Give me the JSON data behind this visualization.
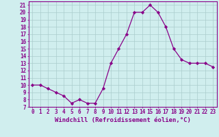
{
  "x": [
    0,
    1,
    2,
    3,
    4,
    5,
    6,
    7,
    8,
    9,
    10,
    11,
    12,
    13,
    14,
    15,
    16,
    17,
    18,
    19,
    20,
    21,
    22,
    23
  ],
  "y": [
    10,
    10,
    9.5,
    9,
    8.5,
    7.5,
    8,
    7.5,
    7.5,
    9.5,
    13,
    15,
    17,
    20,
    20,
    21,
    20,
    18,
    15,
    13.5,
    13,
    13,
    13,
    12.5
  ],
  "line_color": "#880088",
  "marker": "D",
  "marker_size": 2.2,
  "bg_color": "#d0eeee",
  "grid_color": "#aacccc",
  "xlabel": "Windchill (Refroidissement éolien,°C)",
  "xlim": [
    -0.5,
    23.5
  ],
  "ylim": [
    7,
    21.5
  ],
  "yticks": [
    7,
    8,
    9,
    10,
    11,
    12,
    13,
    14,
    15,
    16,
    17,
    18,
    19,
    20,
    21
  ],
  "xticks": [
    0,
    1,
    2,
    3,
    4,
    5,
    6,
    7,
    8,
    9,
    10,
    11,
    12,
    13,
    14,
    15,
    16,
    17,
    18,
    19,
    20,
    21,
    22,
    23
  ],
  "xlabel_fontsize": 6.5,
  "tick_fontsize": 5.5,
  "axis_color": "#880088",
  "linewidth": 0.9
}
